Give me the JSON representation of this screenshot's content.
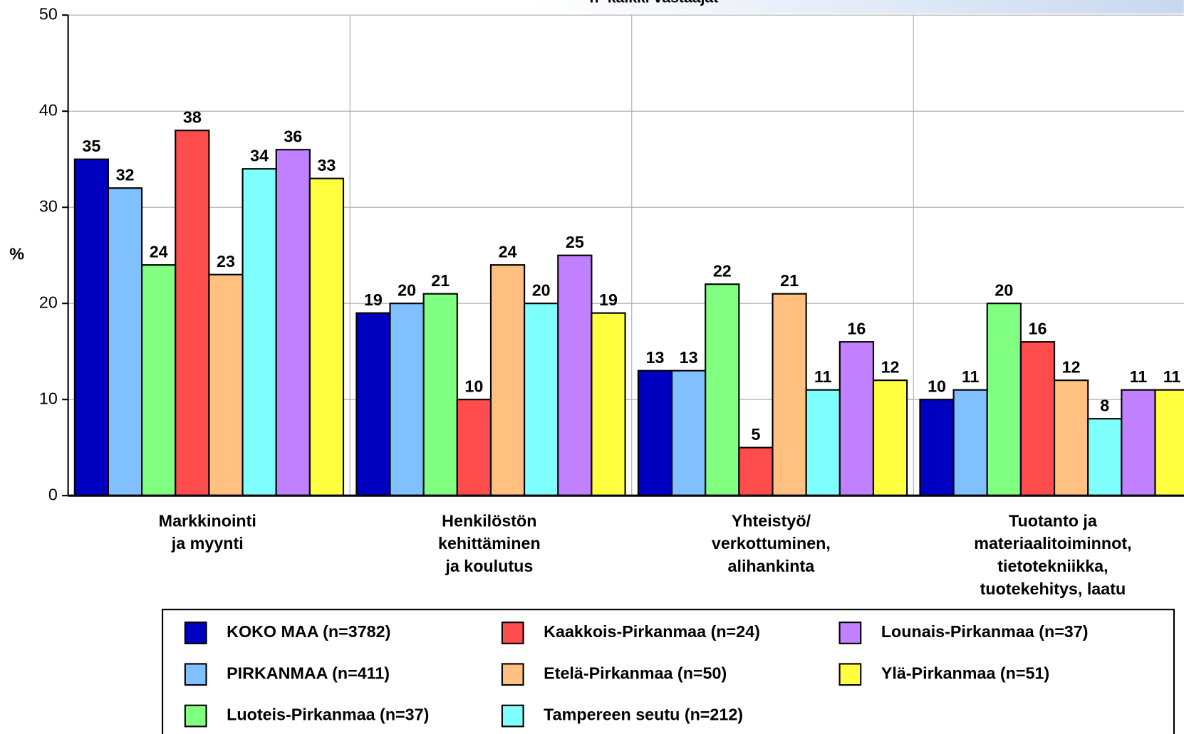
{
  "chart_data": {
    "type": "bar",
    "subtitle": "n=kaikki vastaajat",
    "y_label": "%",
    "categories": [
      [
        "Markkinointi",
        "ja myynti"
      ],
      [
        "Henkilöstön",
        "kehittäminen",
        "ja koulutus"
      ],
      [
        "Yhteistyö/",
        "verkottuminen,",
        "alihankinta"
      ],
      [
        "Tuotanto ja",
        "materiaalitoiminnot,",
        "tietotekniikka,",
        "tuotekehitys, laatu"
      ]
    ],
    "series": [
      {
        "name": "KOKO MAA (n=3782)",
        "color": "#0000c0",
        "values": [
          35,
          19,
          13,
          10
        ]
      },
      {
        "name": "PIRKANMAA (n=411)",
        "color": "#80c0ff",
        "values": [
          32,
          20,
          13,
          11
        ]
      },
      {
        "name": "Luoteis-Pirkanmaa (n=37)",
        "color": "#80ff80",
        "values": [
          24,
          21,
          22,
          20
        ]
      },
      {
        "name": "Kaakkois-Pirkanmaa (n=24)",
        "color": "#ff4c4c",
        "values": [
          38,
          10,
          5,
          16
        ]
      },
      {
        "name": "Etelä-Pirkanmaa (n=50)",
        "color": "#ffc080",
        "values": [
          23,
          24,
          21,
          12
        ]
      },
      {
        "name": "Tampereen seutu (n=212)",
        "color": "#80ffff",
        "values": [
          34,
          20,
          11,
          8
        ]
      },
      {
        "name": "Lounais-Pirkanmaa (n=37)",
        "color": "#c080ff",
        "values": [
          36,
          25,
          16,
          11
        ]
      },
      {
        "name": "Ylä-Pirkanmaa (n=51)",
        "color": "#ffff40",
        "values": [
          33,
          19,
          12,
          11
        ]
      }
    ],
    "ylim": [
      0,
      50
    ],
    "yticks": [
      0,
      10,
      20,
      30,
      40,
      50
    ],
    "grid": true
  }
}
